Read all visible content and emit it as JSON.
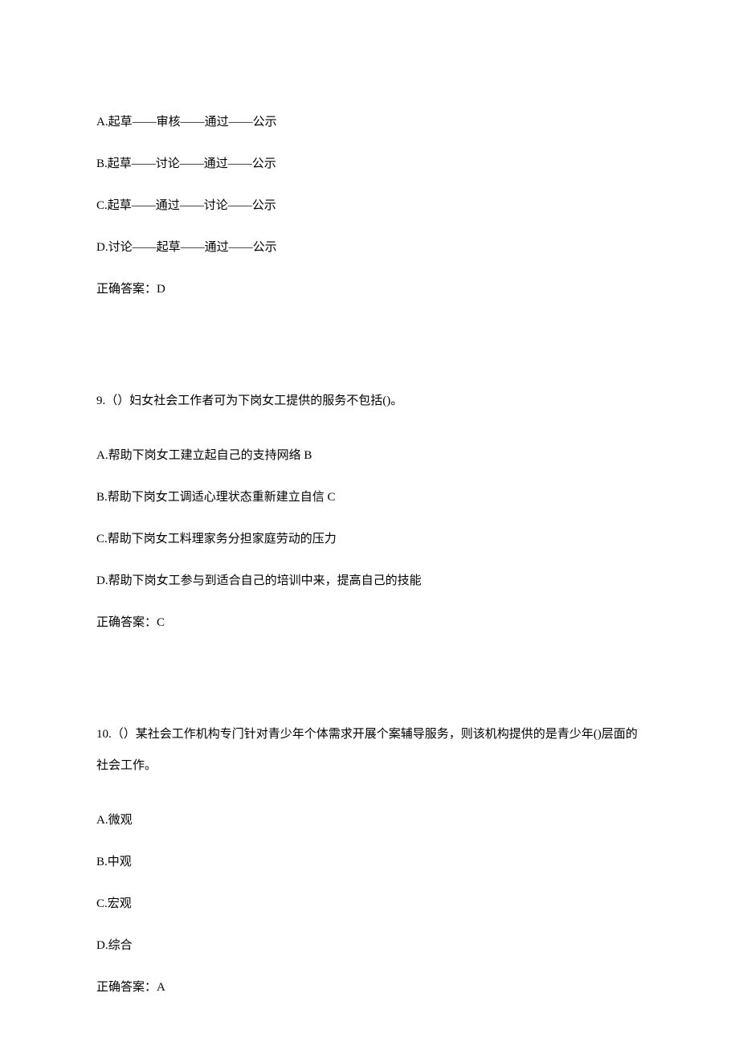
{
  "q8": {
    "options": {
      "A": "A.起草——审核——通过——公示",
      "B": "B.起草——讨论——通过——公示",
      "C": "C.起草——通过——讨论——公示",
      "D": "D.讨论——起草——通过——公示"
    },
    "answer": "正确答案：D"
  },
  "q9": {
    "stem": "9.（）妇女社会工作者可为下岗女工提供的服务不包括()。",
    "options": {
      "A": "A.帮助下岗女工建立起自己的支持网络 B",
      "B": "B.帮助下岗女工调适心理状态重新建立自信 C",
      "C": "C.帮助下岗女工料理家务分担家庭劳动的压力",
      "D": "D.帮助下岗女工参与到适合自己的培训中来，提高自己的技能"
    },
    "answer": "正确答案：C"
  },
  "q10": {
    "stem": "10.（）某社会工作机构专门针对青少年个体需求开展个案辅导服务，则该机构提供的是青少年()层面的社会工作。",
    "options": {
      "A": "A.微观",
      "B": "B.中观",
      "C": "C.宏观",
      "D": "D.综合"
    },
    "answer": "正确答案：A"
  }
}
